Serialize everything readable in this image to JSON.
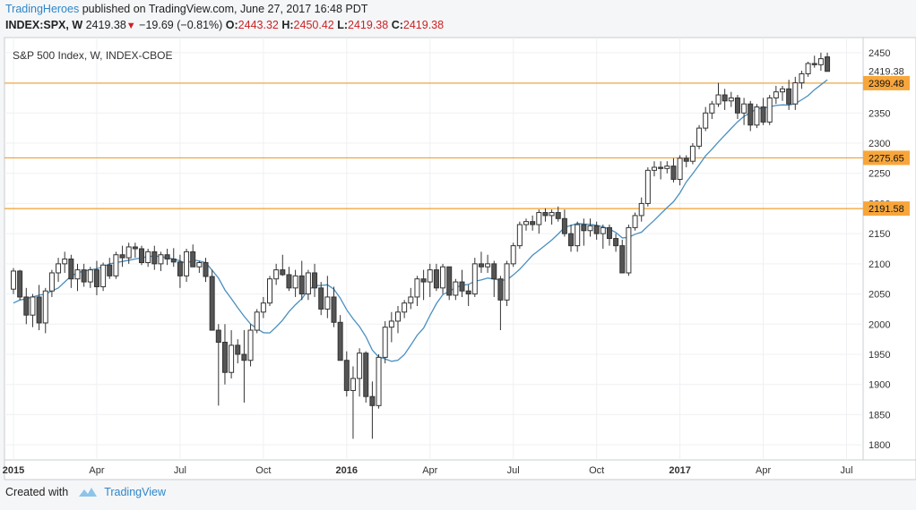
{
  "header": {
    "brand": "TradingHeroes",
    "published": "published on TradingView.com, June 27, 2017 16:48 PDT",
    "symbol": "INDEX:SPX, W",
    "last": "2419.38",
    "change": "−19.69 (−0.81%)",
    "o_label": "O:",
    "o": "2443.32",
    "h_label": "H:",
    "h": "2450.42",
    "l_label": "L:",
    "l": "2419.38",
    "c_label": "C:",
    "c": "2419.38"
  },
  "footer": {
    "created": "Created with",
    "brand": "TradingView"
  },
  "colors": {
    "up": "#ffffff",
    "down": "#555555",
    "wick": "#333333",
    "ma": "#4a8fc0",
    "hline": "#f0a030",
    "hline_label_bg": "#f7a63b",
    "brand": "#2e86c8"
  },
  "chart_data": {
    "type": "candlestick",
    "title": "S&P 500 Index, W, INDEX-CBOE",
    "ylim": [
      1775,
      2475
    ],
    "y_ticks": [
      1800,
      1850,
      1900,
      1950,
      2000,
      2050,
      2100,
      2150,
      2200,
      2250,
      2300,
      2350,
      2400,
      2450
    ],
    "x_ticks": [
      {
        "label": "2015",
        "bold": true,
        "index": 0
      },
      {
        "label": "Apr",
        "bold": false,
        "index": 13
      },
      {
        "label": "Jul",
        "bold": false,
        "index": 26
      },
      {
        "label": "Oct",
        "bold": false,
        "index": 39
      },
      {
        "label": "2016",
        "bold": true,
        "index": 52
      },
      {
        "label": "Apr",
        "bold": false,
        "index": 65
      },
      {
        "label": "Jul",
        "bold": false,
        "index": 78
      },
      {
        "label": "Oct",
        "bold": false,
        "index": 91
      },
      {
        "label": "2017",
        "bold": true,
        "index": 104
      },
      {
        "label": "Apr",
        "bold": false,
        "index": 117
      },
      {
        "label": "Jul",
        "bold": false,
        "index": 130
      }
    ],
    "last_price": 2419.38,
    "horizontal_lines": [
      2399.48,
      2275.65,
      2191.58
    ],
    "ma_start": [
      2035,
      2040,
      2042,
      2045,
      2048,
      2050,
      2055,
      2060,
      2070,
      2080,
      2085,
      2088,
      2090,
      2092,
      2095,
      2100,
      2102,
      2104,
      2106,
      2108,
      2110,
      2112,
      2113,
      2112,
      2110,
      2108,
      2105,
      2100
    ],
    "candles": [
      [
        2058,
        2093,
        2050,
        2088
      ],
      [
        2088,
        2090,
        2040,
        2045
      ],
      [
        2045,
        2060,
        2000,
        2015
      ],
      [
        2015,
        2050,
        1995,
        2045
      ],
      [
        2045,
        2065,
        1990,
        2002
      ],
      [
        2002,
        2060,
        1985,
        2055
      ],
      [
        2055,
        2090,
        2045,
        2085
      ],
      [
        2085,
        2110,
        2070,
        2100
      ],
      [
        2100,
        2120,
        2085,
        2108
      ],
      [
        2108,
        2115,
        2060,
        2075
      ],
      [
        2075,
        2100,
        2055,
        2090
      ],
      [
        2090,
        2100,
        2062,
        2070
      ],
      [
        2070,
        2095,
        2060,
        2090
      ],
      [
        2090,
        2105,
        2048,
        2062
      ],
      [
        2062,
        2102,
        2055,
        2098
      ],
      [
        2098,
        2110,
        2075,
        2080
      ],
      [
        2080,
        2120,
        2075,
        2115
      ],
      [
        2115,
        2130,
        2095,
        2110
      ],
      [
        2110,
        2135,
        2100,
        2128
      ],
      [
        2128,
        2135,
        2110,
        2125
      ],
      [
        2125,
        2130,
        2098,
        2102
      ],
      [
        2102,
        2125,
        2095,
        2120
      ],
      [
        2120,
        2130,
        2090,
        2100
      ],
      [
        2100,
        2120,
        2088,
        2115
      ],
      [
        2115,
        2125,
        2098,
        2108
      ],
      [
        2108,
        2126,
        2095,
        2103
      ],
      [
        2103,
        2115,
        2060,
        2080
      ],
      [
        2080,
        2125,
        2070,
        2120
      ],
      [
        2120,
        2132,
        2095,
        2095
      ],
      [
        2095,
        2105,
        2085,
        2102
      ],
      [
        2102,
        2110,
        2070,
        2079
      ],
      [
        2079,
        2090,
        1990,
        1990
      ],
      [
        1990,
        2000,
        1865,
        1970
      ],
      [
        1970,
        2000,
        1900,
        1920
      ],
      [
        1920,
        1990,
        1910,
        1965
      ],
      [
        1965,
        1975,
        1935,
        1950
      ],
      [
        1950,
        1990,
        1870,
        1940
      ],
      [
        1940,
        2000,
        1930,
        1990
      ],
      [
        1990,
        2025,
        1985,
        2020
      ],
      [
        2020,
        2045,
        2010,
        2035
      ],
      [
        2035,
        2080,
        2030,
        2075
      ],
      [
        2075,
        2100,
        2065,
        2090
      ],
      [
        2090,
        2115,
        2080,
        2082
      ],
      [
        2082,
        2095,
        2055,
        2060
      ],
      [
        2060,
        2090,
        2045,
        2080
      ],
      [
        2080,
        2105,
        2040,
        2050
      ],
      [
        2050,
        2090,
        2040,
        2085
      ],
      [
        2085,
        2100,
        2045,
        2060
      ],
      [
        2060,
        2070,
        2015,
        2025
      ],
      [
        2025,
        2080,
        2010,
        2045
      ],
      [
        2045,
        2062,
        1995,
        2003
      ],
      [
        2003,
        2015,
        1940,
        1940
      ],
      [
        1940,
        1955,
        1880,
        1890
      ],
      [
        1890,
        1930,
        1810,
        1910
      ],
      [
        1910,
        1960,
        1880,
        1952
      ],
      [
        1952,
        1955,
        1870,
        1880
      ],
      [
        1880,
        1905,
        1810,
        1865
      ],
      [
        1865,
        1950,
        1860,
        1945
      ],
      [
        1945,
        2005,
        1935,
        1995
      ],
      [
        1995,
        2020,
        1970,
        2005
      ],
      [
        2005,
        2030,
        1985,
        2020
      ],
      [
        2020,
        2040,
        2010,
        2035
      ],
      [
        2035,
        2060,
        2025,
        2045
      ],
      [
        2045,
        2080,
        2030,
        2075
      ],
      [
        2075,
        2090,
        2040,
        2070
      ],
      [
        2070,
        2100,
        2045,
        2090
      ],
      [
        2090,
        2100,
        2055,
        2060
      ],
      [
        2060,
        2100,
        2050,
        2095
      ],
      [
        2095,
        2095,
        2040,
        2048
      ],
      [
        2048,
        2075,
        2040,
        2070
      ],
      [
        2070,
        2090,
        2045,
        2055
      ],
      [
        2055,
        2065,
        2030,
        2050
      ],
      [
        2050,
        2110,
        2045,
        2100
      ],
      [
        2100,
        2120,
        2085,
        2095
      ],
      [
        2095,
        2115,
        2085,
        2100
      ],
      [
        2100,
        2105,
        2045,
        2075
      ],
      [
        2075,
        2080,
        1990,
        2040
      ],
      [
        2040,
        2105,
        2030,
        2100
      ],
      [
        2100,
        2135,
        2095,
        2130
      ],
      [
        2130,
        2170,
        2125,
        2165
      ],
      [
        2165,
        2175,
        2155,
        2170
      ],
      [
        2170,
        2180,
        2155,
        2165
      ],
      [
        2165,
        2190,
        2150,
        2185
      ],
      [
        2185,
        2192,
        2170,
        2180
      ],
      [
        2180,
        2190,
        2165,
        2185
      ],
      [
        2185,
        2195,
        2170,
        2175
      ],
      [
        2175,
        2190,
        2145,
        2150
      ],
      [
        2150,
        2165,
        2120,
        2130
      ],
      [
        2130,
        2170,
        2120,
        2165
      ],
      [
        2165,
        2175,
        2130,
        2155
      ],
      [
        2155,
        2175,
        2145,
        2163
      ],
      [
        2163,
        2170,
        2140,
        2150
      ],
      [
        2150,
        2165,
        2125,
        2160
      ],
      [
        2160,
        2165,
        2130,
        2142
      ],
      [
        2142,
        2150,
        2120,
        2130
      ],
      [
        2130,
        2140,
        2085,
        2085
      ],
      [
        2085,
        2165,
        2080,
        2160
      ],
      [
        2160,
        2185,
        2155,
        2180
      ],
      [
        2180,
        2210,
        2170,
        2200
      ],
      [
        2200,
        2260,
        2195,
        2255
      ],
      [
        2255,
        2270,
        2245,
        2260
      ],
      [
        2260,
        2270,
        2240,
        2258
      ],
      [
        2258,
        2270,
        2250,
        2262
      ],
      [
        2262,
        2275,
        2235,
        2240
      ],
      [
        2240,
        2280,
        2230,
        2275
      ],
      [
        2275,
        2280,
        2260,
        2270
      ],
      [
        2270,
        2300,
        2265,
        2295
      ],
      [
        2295,
        2330,
        2290,
        2325
      ],
      [
        2325,
        2360,
        2320,
        2350
      ],
      [
        2350,
        2370,
        2340,
        2365
      ],
      [
        2365,
        2400,
        2360,
        2380
      ],
      [
        2380,
        2390,
        2355,
        2370
      ],
      [
        2370,
        2385,
        2360,
        2375
      ],
      [
        2375,
        2380,
        2340,
        2350
      ],
      [
        2350,
        2375,
        2330,
        2365
      ],
      [
        2365,
        2370,
        2320,
        2330
      ],
      [
        2330,
        2365,
        2325,
        2360
      ],
      [
        2360,
        2375,
        2330,
        2335
      ],
      [
        2335,
        2380,
        2330,
        2375
      ],
      [
        2375,
        2395,
        2365,
        2385
      ],
      [
        2385,
        2395,
        2370,
        2390
      ],
      [
        2390,
        2405,
        2355,
        2365
      ],
      [
        2365,
        2410,
        2355,
        2400
      ],
      [
        2400,
        2420,
        2390,
        2415
      ],
      [
        2415,
        2435,
        2410,
        2432
      ],
      [
        2432,
        2445,
        2425,
        2430
      ],
      [
        2430,
        2450,
        2420,
        2440
      ],
      [
        2443,
        2450,
        2419,
        2419
      ]
    ]
  }
}
